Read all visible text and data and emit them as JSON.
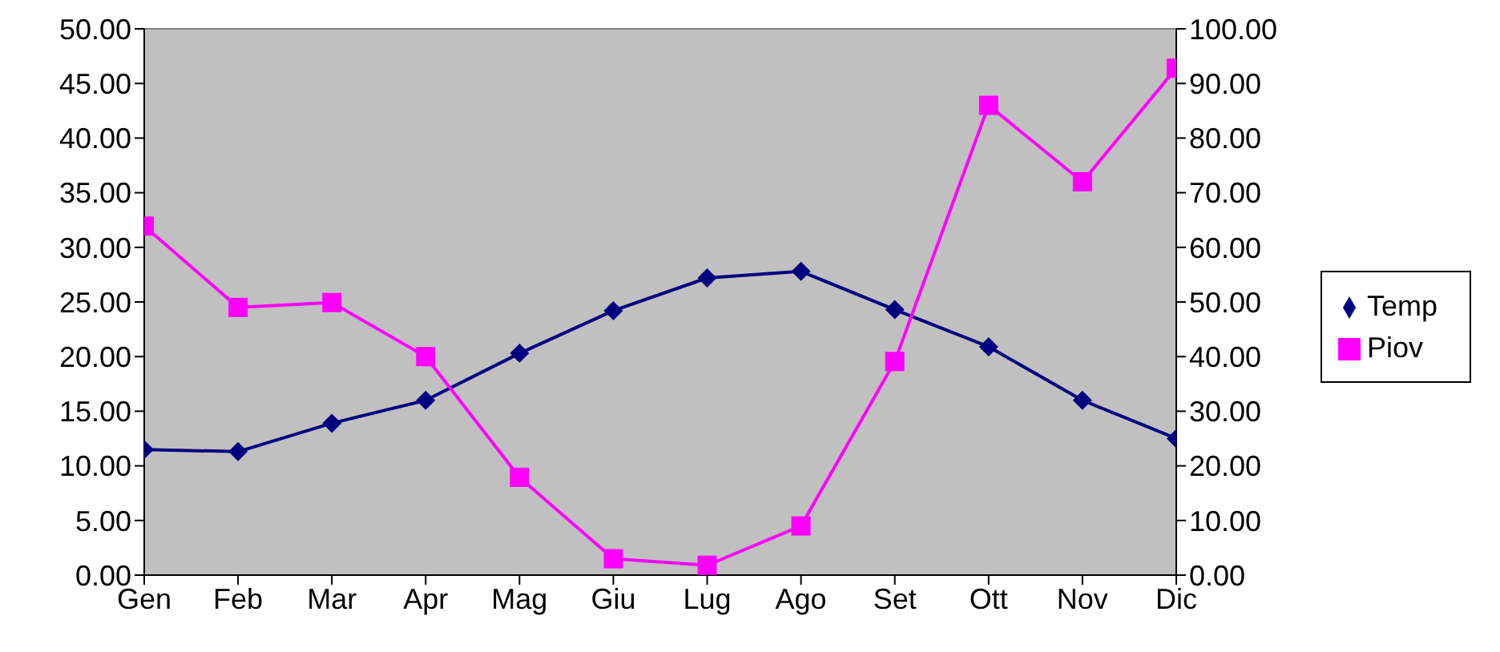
{
  "chart_data": {
    "type": "line",
    "categories": [
      "Gen",
      "Feb",
      "Mar",
      "Apr",
      "Mag",
      "Giu",
      "Lug",
      "Ago",
      "Set",
      "Ott",
      "Nov",
      "Dic"
    ],
    "series": [
      {
        "name": "Temp",
        "color": "#000080",
        "marker": "diamond",
        "values": [
          11.5,
          11.3,
          13.9,
          16.0,
          20.3,
          24.2,
          27.2,
          27.8,
          24.3,
          20.9,
          16.0,
          12.5
        ]
      },
      {
        "name": "Piov",
        "color": "#ff00ff",
        "marker": "square",
        "axis": "y2",
        "values": [
          63.9,
          49.0,
          49.9,
          40.0,
          17.9,
          3.0,
          1.8,
          9.0,
          39.1,
          86.0,
          72.0,
          92.8
        ]
      }
    ],
    "ylim": [
      0,
      50
    ],
    "yticks": [
      {
        "value": 0,
        "label": "0.00"
      },
      {
        "value": 5,
        "label": "5.00"
      },
      {
        "value": 10,
        "label": "10.00"
      },
      {
        "value": 15,
        "label": "15.00"
      },
      {
        "value": 20,
        "label": "20.00"
      },
      {
        "value": 25,
        "label": "25.00"
      },
      {
        "value": 30,
        "label": "30.00"
      },
      {
        "value": 35,
        "label": "35.00"
      },
      {
        "value": 40,
        "label": "40.00"
      },
      {
        "value": 45,
        "label": "45.00"
      },
      {
        "value": 50,
        "label": "50.00"
      }
    ],
    "y2lim": [
      0,
      100
    ],
    "y2ticks": [
      {
        "value": 0,
        "label": "0.00"
      },
      {
        "value": 10,
        "label": "10.00"
      },
      {
        "value": 20,
        "label": "20.00"
      },
      {
        "value": 30,
        "label": "30.00"
      },
      {
        "value": 40,
        "label": "40.00"
      },
      {
        "value": 50,
        "label": "50.00"
      },
      {
        "value": 60,
        "label": "60.00"
      },
      {
        "value": 70,
        "label": "70.00"
      },
      {
        "value": 80,
        "label": "80.00"
      },
      {
        "value": 90,
        "label": "90.00"
      },
      {
        "value": 100,
        "label": "100.00"
      }
    ],
    "legend": "right"
  }
}
